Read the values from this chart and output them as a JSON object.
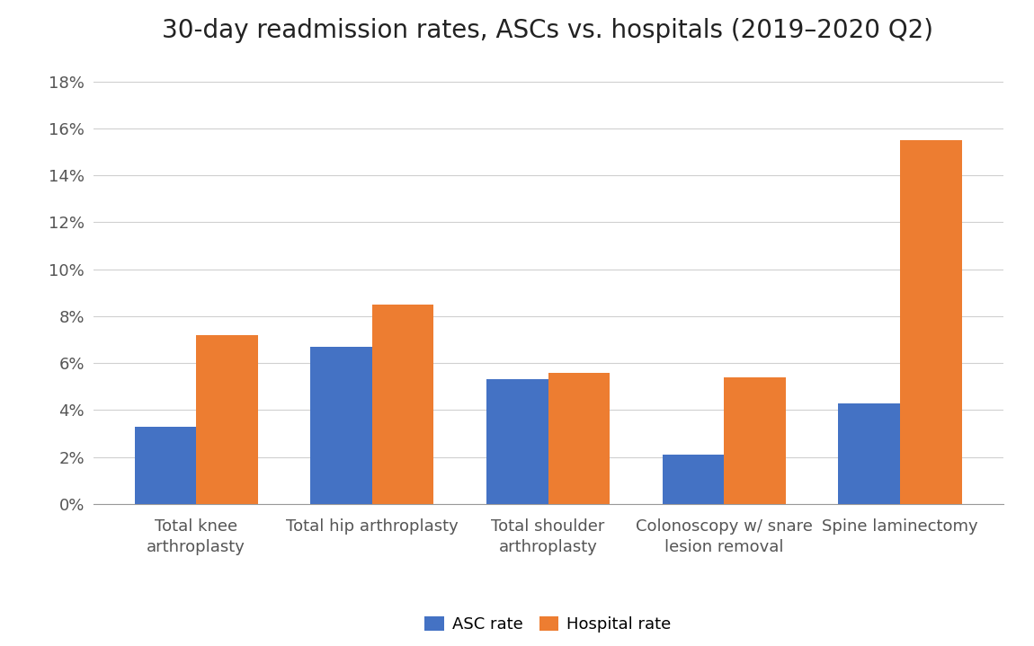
{
  "title": "30-day readmission rates, ASCs vs. hospitals (2019–2020 Q2)",
  "categories": [
    "Total knee\narthroplasty",
    "Total hip arthroplasty",
    "Total shoulder\narthroplasty",
    "Colonoscopy w/ snare\nlesion removal",
    "Spine laminectomy"
  ],
  "asc_values": [
    0.033,
    0.067,
    0.053,
    0.021,
    0.043
  ],
  "hospital_values": [
    0.072,
    0.085,
    0.056,
    0.054,
    0.155
  ],
  "asc_color": "#4472C4",
  "hospital_color": "#ED7D31",
  "asc_label": "ASC rate",
  "hospital_label": "Hospital rate",
  "ylim": [
    0,
    0.19
  ],
  "yticks": [
    0,
    0.02,
    0.04,
    0.06,
    0.08,
    0.1,
    0.12,
    0.14,
    0.16,
    0.18
  ],
  "background_color": "#ffffff",
  "title_fontsize": 20,
  "tick_fontsize": 13,
  "legend_fontsize": 13,
  "bar_width": 0.35,
  "grid_color": "#d0d0d0"
}
